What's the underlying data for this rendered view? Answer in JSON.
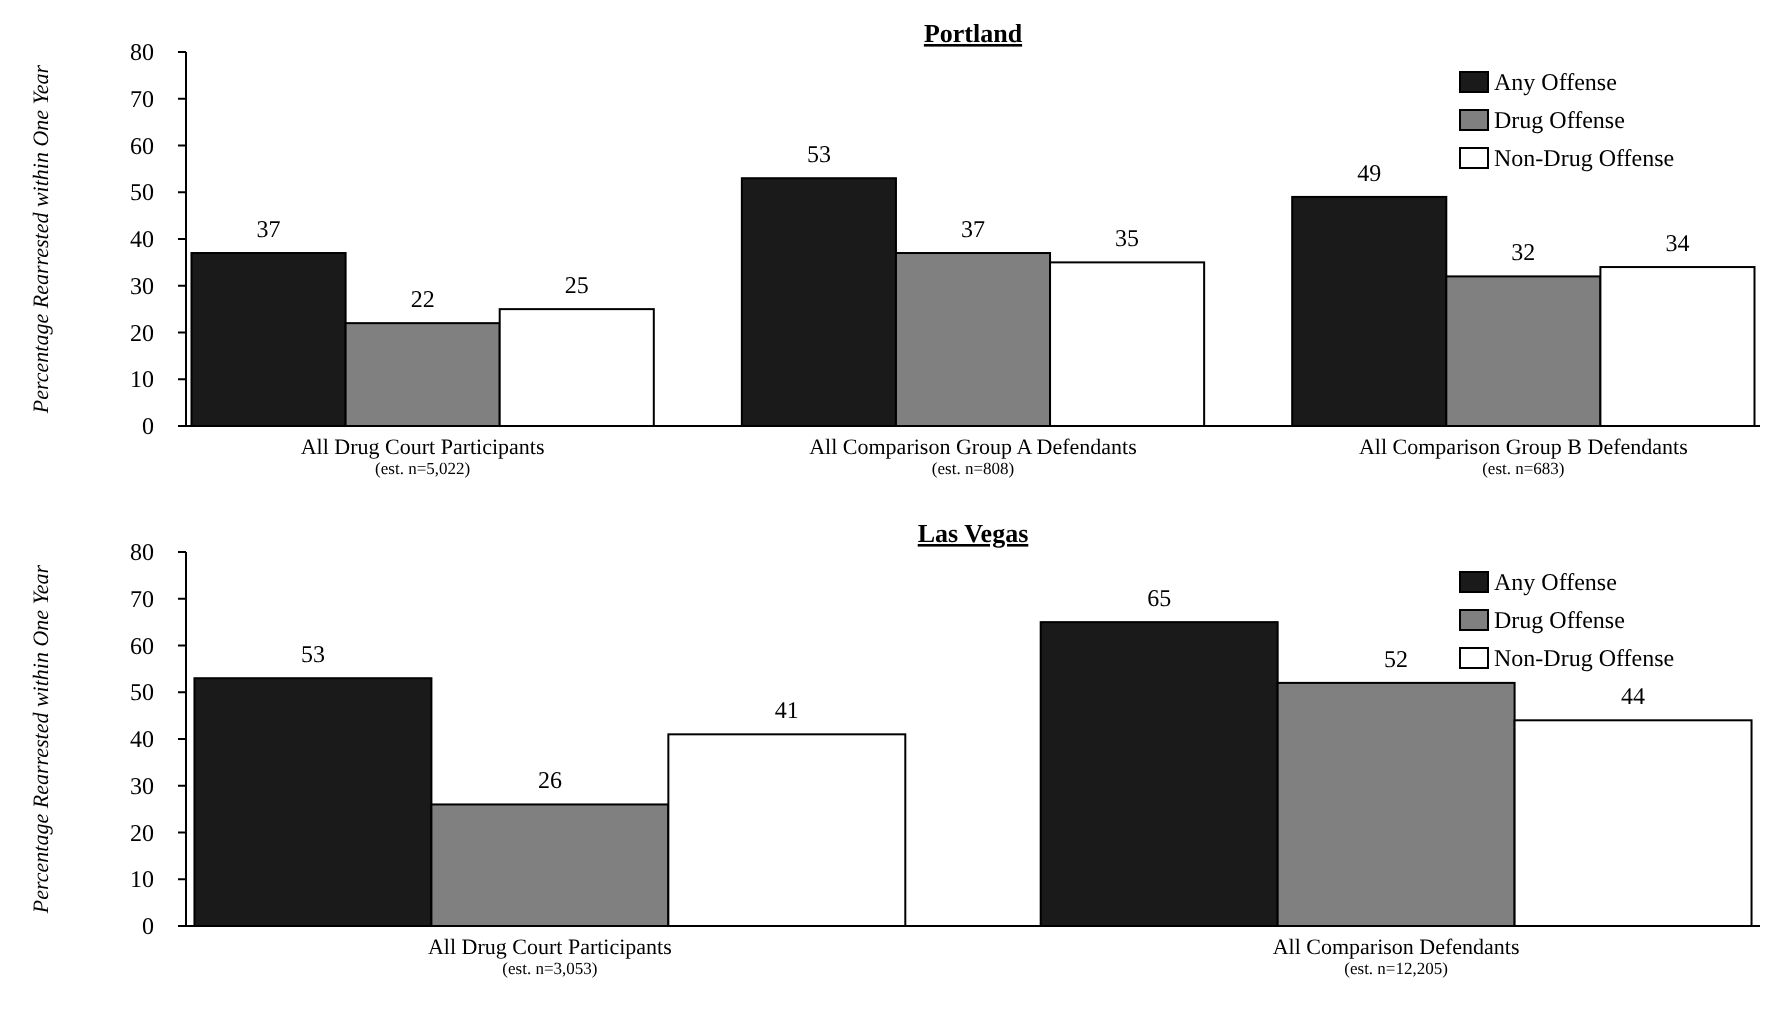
{
  "chart_data": [
    {
      "type": "bar",
      "title": "Portland",
      "ylabel": "Percentage Rearrested within One Year",
      "categories": [
        "All Drug Court Participants\n(est. n=5,022)",
        "All Comparison Group A Defendants\n(est. n=808)",
        "All Comparison Group B Defendants\n(est. n=683)"
      ],
      "series": [
        {
          "name": "Any Offense",
          "color": "#1a1a1a",
          "values": [
            37,
            53,
            49
          ]
        },
        {
          "name": "Drug Offense",
          "color": "#808080",
          "values": [
            22,
            37,
            32
          ]
        },
        {
          "name": "Non-Drug Offense",
          "color": "#ffffff",
          "values": [
            25,
            35,
            34
          ]
        }
      ],
      "ylim": [
        0,
        80
      ],
      "yticks": [
        0,
        10,
        20,
        30,
        40,
        50,
        60,
        70,
        80
      ],
      "grid": false,
      "legend": "top right",
      "data_labels": true
    },
    {
      "type": "bar",
      "title": "Las Vegas",
      "ylabel": "Percentage Rearrested within One Year",
      "categories": [
        "All Drug Court Participants\n(est. n=3,053)",
        "All Comparison Defendants\n(est. n=12,205)"
      ],
      "series": [
        {
          "name": "Any Offense",
          "color": "#1a1a1a",
          "values": [
            53,
            65
          ]
        },
        {
          "name": "Drug Offense",
          "color": "#808080",
          "values": [
            26,
            52
          ]
        },
        {
          "name": "Non-Drug Offense",
          "color": "#ffffff",
          "values": [
            41,
            44
          ]
        }
      ],
      "ylim": [
        0,
        80
      ],
      "yticks": [
        0,
        10,
        20,
        30,
        40,
        50,
        60,
        70,
        80
      ],
      "grid": false,
      "legend": "top right",
      "data_labels": true
    }
  ]
}
